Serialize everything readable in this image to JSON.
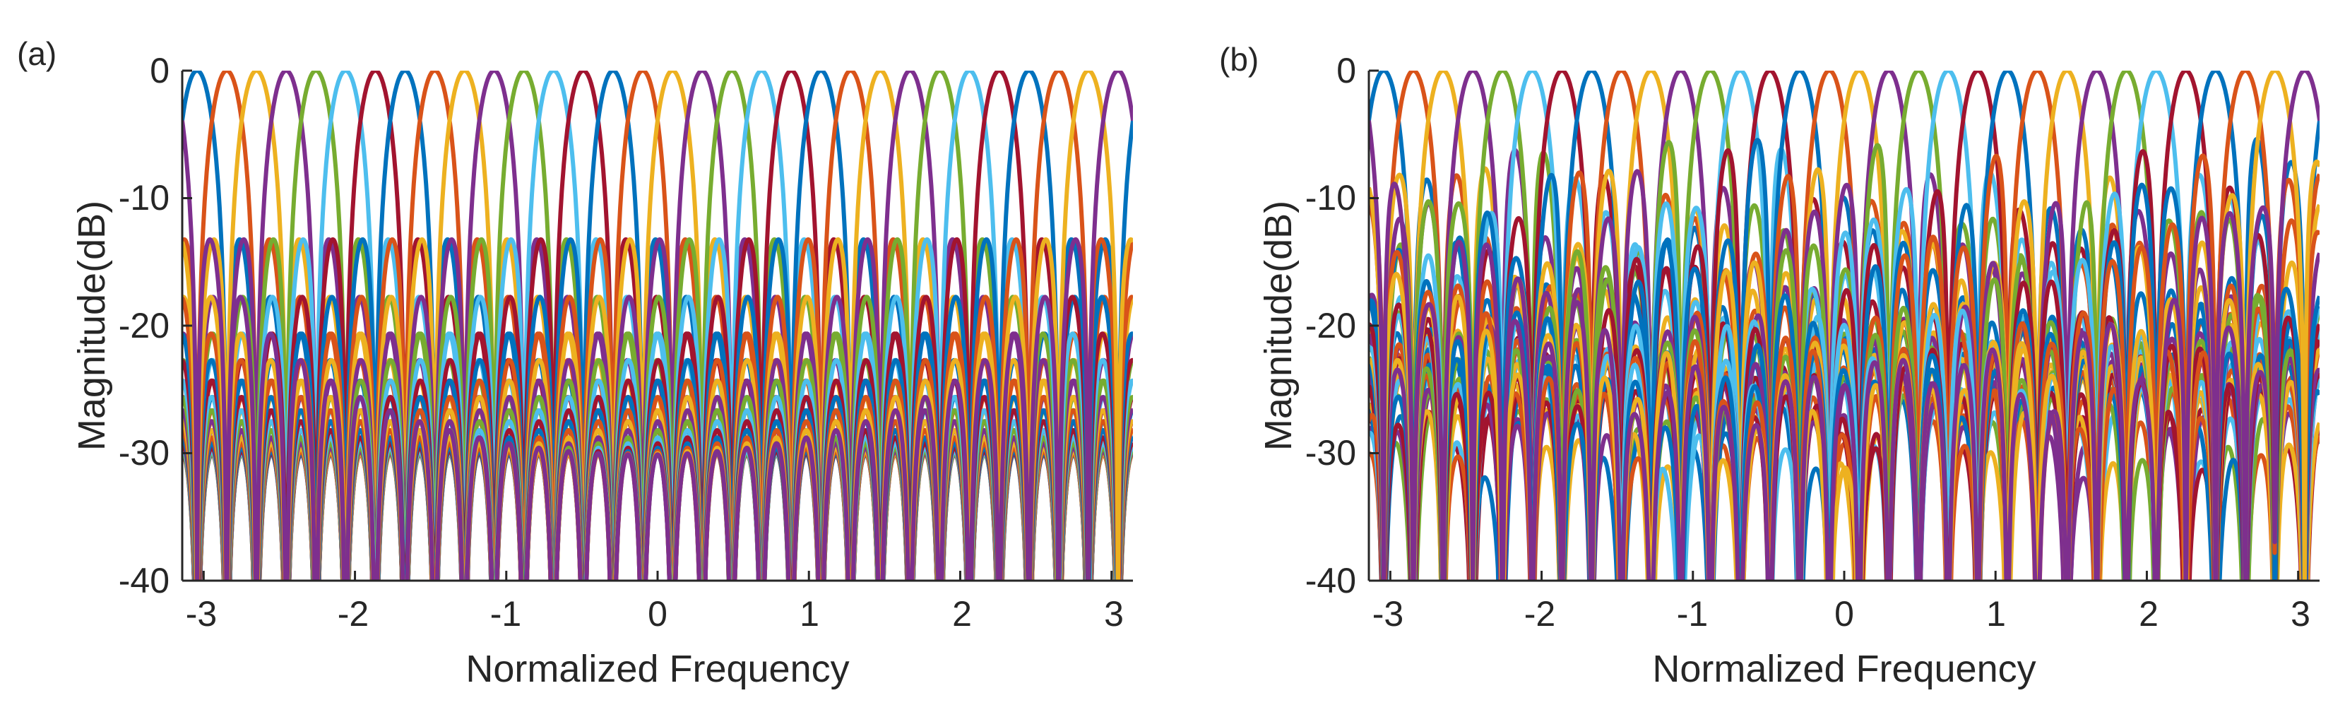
{
  "colors": [
    "#0072BD",
    "#D95319",
    "#EDB120",
    "#7E2F8E",
    "#77AC30",
    "#4DBEEE",
    "#A2142F"
  ],
  "chart_data": [
    {
      "panel": "(a)",
      "type": "line",
      "title": "",
      "xlabel": "Normalized Frequency",
      "ylabel": "Magnitude(dB)",
      "xlim": [
        -3.14159,
        3.14159
      ],
      "ylim": [
        -40,
        0
      ],
      "xticks": [
        -3,
        -2,
        -1,
        0,
        1,
        2,
        3
      ],
      "yticks": [
        0,
        -10,
        -20,
        -30,
        -40
      ],
      "xtick_labels": [
        "-3",
        "-2",
        "-1",
        "0",
        "1",
        "2",
        "3"
      ],
      "ytick_labels": [
        "0",
        "-10",
        "-20",
        "-30",
        "-40"
      ],
      "grid": false,
      "series_description": "32 sinc-shaped beams, each peaking at 0 dB, peaks evenly spaced across the band",
      "beams": {
        "count": 32,
        "peak_db": 0,
        "mainlobe_halfwidth": 0.196,
        "first_sidelobe_db": -13.3,
        "floor_db": -40,
        "jitter": 0
      }
    },
    {
      "panel": "(b)",
      "type": "line",
      "title": "",
      "xlabel": "Normalized Frequency",
      "ylabel": "Magnitude(dB)",
      "xlim": [
        -3.14159,
        3.14159
      ],
      "ylim": [
        -40,
        0
      ],
      "xticks": [
        -3,
        -2,
        -1,
        0,
        1,
        2,
        3
      ],
      "yticks": [
        0,
        -10,
        -20,
        -30,
        -40
      ],
      "xtick_labels": [
        "-3",
        "-2",
        "-1",
        "0",
        "1",
        "2",
        "3"
      ],
      "ytick_labels": [
        "0",
        "-10",
        "-20",
        "-30",
        "-40"
      ],
      "grid": false,
      "series_description": "32 beams peaking at 0 dB with irregular, elevated sidelobes",
      "beams": {
        "count": 32,
        "peak_db": 0,
        "mainlobe_halfwidth": 0.196,
        "first_sidelobe_db": -13.3,
        "floor_db": -40,
        "jitter": 1
      }
    }
  ]
}
